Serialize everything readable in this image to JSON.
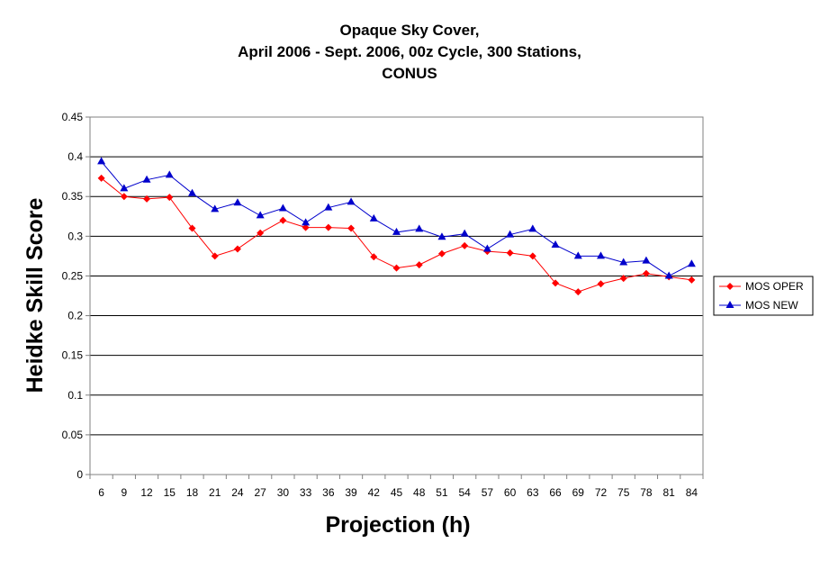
{
  "chart_data": {
    "type": "line",
    "title_lines": [
      "Opaque Sky Cover,",
      "April 2006 - Sept. 2006, 00z Cycle, 300 Stations,",
      "CONUS"
    ],
    "xlabel": "Projection (h)",
    "ylabel": "Heidke Skill Score",
    "categories": [
      "6",
      "9",
      "12",
      "15",
      "18",
      "21",
      "24",
      "27",
      "30",
      "33",
      "36",
      "39",
      "42",
      "45",
      "48",
      "51",
      "54",
      "57",
      "60",
      "63",
      "66",
      "69",
      "72",
      "75",
      "78",
      "81",
      "84"
    ],
    "ylim": [
      0,
      0.45
    ],
    "yticks": [
      "0",
      "0.05",
      "0.1",
      "0.15",
      "0.2",
      "0.25",
      "0.3",
      "0.35",
      "0.4",
      "0.45"
    ],
    "grid": "horizontal",
    "legend_position": "right",
    "series": [
      {
        "name": "MOS OPER",
        "color": "#ff0000",
        "marker": "diamond",
        "values": [
          0.373,
          0.35,
          0.347,
          0.349,
          0.31,
          0.275,
          0.284,
          0.304,
          0.32,
          0.311,
          0.311,
          0.31,
          0.274,
          0.26,
          0.264,
          0.278,
          0.288,
          0.281,
          0.279,
          0.275,
          0.241,
          0.23,
          0.24,
          0.247,
          0.253,
          0.249,
          0.245
        ]
      },
      {
        "name": "MOS NEW",
        "color": "#0000cc",
        "marker": "triangle",
        "values": [
          0.394,
          0.36,
          0.371,
          0.377,
          0.354,
          0.334,
          0.342,
          0.326,
          0.335,
          0.317,
          0.336,
          0.343,
          0.322,
          0.305,
          0.309,
          0.299,
          0.303,
          0.284,
          0.302,
          0.309,
          0.289,
          0.275,
          0.275,
          0.267,
          0.269,
          0.25,
          0.265
        ]
      }
    ]
  }
}
